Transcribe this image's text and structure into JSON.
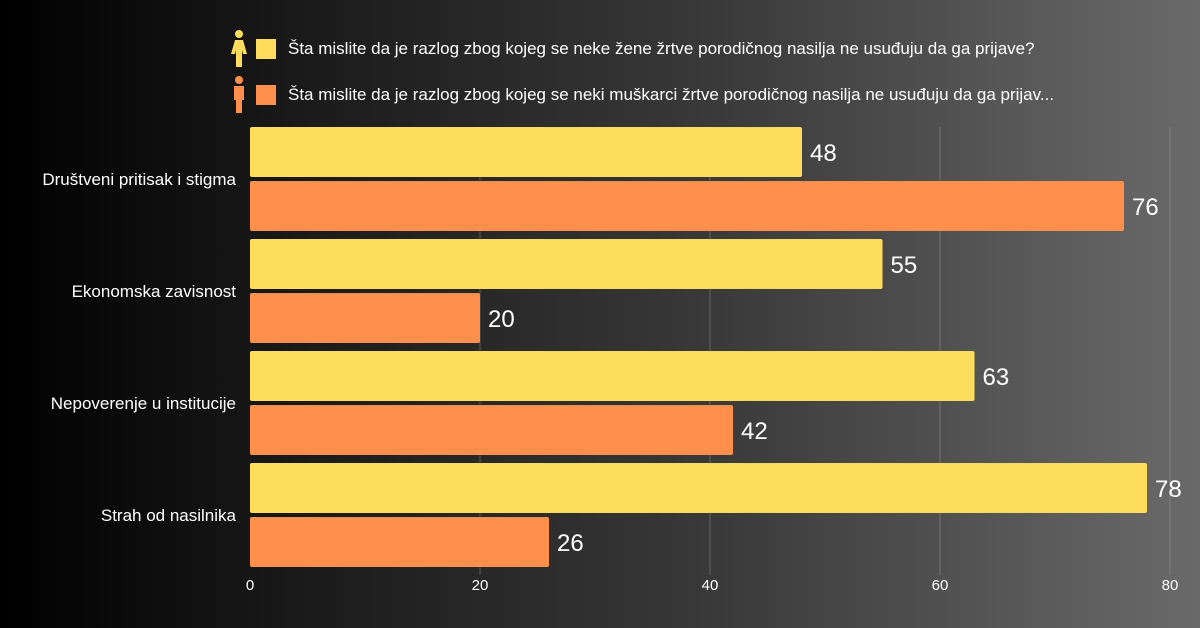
{
  "legend": [
    {
      "icon": "female-person-icon",
      "color": "#FFDD5C",
      "label": "Šta mislite da je razlog zbog kojeg se neke žene žrtve porodičnog nasilja ne usuđuju da ga prijave?"
    },
    {
      "icon": "male-person-icon",
      "color": "#FF8F4A",
      "label": "Šta mislite da je razlog zbog kojeg se neki muškarci žrtve porodičnog nasilja ne usuđuju da ga prijav..."
    }
  ],
  "chart_data": {
    "type": "bar",
    "orientation": "horizontal",
    "categories": [
      "Društveni pritisak i stigma",
      "Ekonomska zavisnost",
      "Nepoverenje u institucije",
      "Strah od nasilnika"
    ],
    "series": [
      {
        "name": "Šta mislite da je razlog zbog kojeg se neke žene žrtve porodičnog nasilja ne usuđuju da ga prijave?",
        "color": "#FFDD5C",
        "values": [
          48,
          55,
          63,
          78
        ]
      },
      {
        "name": "Šta mislite da je razlog zbog kojeg se neki muškarci žrtve porodičnog nasilja ne usuđuju da ga prijav...",
        "color": "#FF8F4A",
        "values": [
          76,
          20,
          42,
          26
        ]
      }
    ],
    "xlim": [
      0,
      80
    ],
    "xticks": [
      0,
      20,
      40,
      60,
      80
    ],
    "grid": true,
    "legend_position": "top",
    "title": "",
    "xlabel": "",
    "ylabel": ""
  }
}
